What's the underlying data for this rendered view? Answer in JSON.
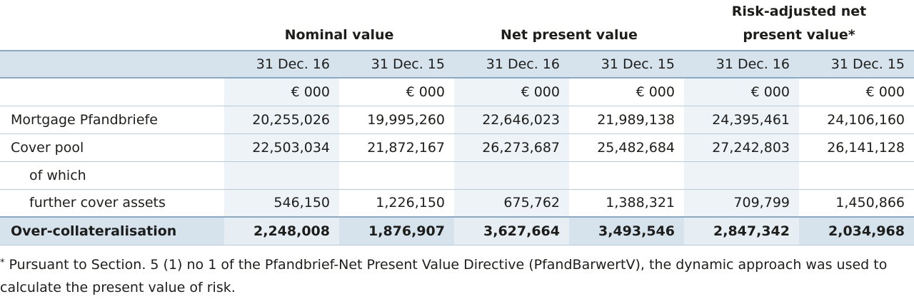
{
  "table": {
    "group_headers": [
      {
        "id": "nominal",
        "lines": [
          "Nominal value"
        ]
      },
      {
        "id": "npv",
        "lines": [
          "Net present value"
        ]
      },
      {
        "id": "risk",
        "lines": [
          "Risk-adjusted net",
          "present value*"
        ]
      }
    ],
    "dates": [
      "31 Dec. 16",
      "31 Dec. 15",
      "31 Dec. 16",
      "31 Dec. 15",
      "31 Dec. 16",
      "31 Dec. 15"
    ],
    "units": [
      "€ 000",
      "€ 000",
      "€ 000",
      "€ 000",
      "€ 000",
      "€ 000"
    ],
    "rows": [
      {
        "label": "Mortgage Pfandbriefe",
        "values": [
          "20,255,026",
          "19,995,260",
          "22,646,023",
          "21,989,138",
          "24,395,461",
          "24,106,160"
        ]
      },
      {
        "label": "Cover pool",
        "values": [
          "22,503,034",
          "21,872,167",
          "26,273,687",
          "25,482,684",
          "27,242,803",
          "26,141,128"
        ]
      },
      {
        "label": "of which",
        "values": [
          "",
          "",
          "",
          "",
          "",
          ""
        ]
      },
      {
        "label": "further cover assets",
        "values": [
          "546,150",
          "1,226,150",
          "675,762",
          "1,388,321",
          "709,799",
          "1,450,866"
        ]
      }
    ],
    "total": {
      "label": "Over-collateralisation",
      "values": [
        "2,248,008",
        "1,876,907",
        "3,627,664",
        "3,493,546",
        "2,847,342",
        "2,034,968"
      ]
    }
  },
  "footnote": {
    "marker": "*",
    "text": "Pursuant to Section. 5 (1) no 1 of the Pfandbrief-Net Present Value Directive (PfandBarwertV), the dynamic approach was used to calculate the present value of risk."
  }
}
